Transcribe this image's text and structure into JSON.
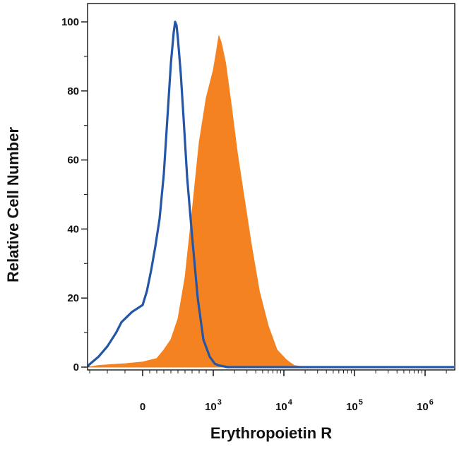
{
  "chart_data": {
    "type": "area",
    "title": "",
    "xlabel": "Erythropoietin R",
    "ylabel": "Relative Cell Number",
    "x_scale": "biexponential",
    "xlim": [
      -400,
      3000000
    ],
    "ylim": [
      0,
      105
    ],
    "y_ticks": [
      {
        "value": 0,
        "label": "0"
      },
      {
        "value": 20,
        "label": "20"
      },
      {
        "value": 40,
        "label": "40"
      },
      {
        "value": 60,
        "label": "60"
      },
      {
        "value": 80,
        "label": "80"
      },
      {
        "value": 100,
        "label": "100"
      }
    ],
    "x_ticks": [
      {
        "value": 0,
        "base": "0",
        "exp": ""
      },
      {
        "value": 1000,
        "base": "10",
        "exp": "3"
      },
      {
        "value": 10000,
        "base": "10",
        "exp": "4"
      },
      {
        "value": 100000,
        "base": "10",
        "exp": "5"
      },
      {
        "value": 1000000,
        "base": "10",
        "exp": "6"
      }
    ],
    "grid": false,
    "series": [
      {
        "style": "filled",
        "color": "#F58220",
        "points": [
          [
            -400,
            0
          ],
          [
            -250,
            0.5
          ],
          [
            -100,
            1
          ],
          [
            0,
            1.5
          ],
          [
            100,
            2
          ],
          [
            200,
            2.5
          ],
          [
            300,
            5
          ],
          [
            400,
            8
          ],
          [
            500,
            14
          ],
          [
            600,
            26
          ],
          [
            700,
            45
          ],
          [
            800,
            65
          ],
          [
            900,
            78
          ],
          [
            1000,
            86
          ],
          [
            1100,
            91
          ],
          [
            1200,
            96
          ],
          [
            1300,
            94
          ],
          [
            1500,
            88
          ],
          [
            1800,
            76
          ],
          [
            2200,
            62
          ],
          [
            2700,
            50
          ],
          [
            3500,
            35
          ],
          [
            4500,
            22
          ],
          [
            6000,
            12
          ],
          [
            8000,
            5
          ],
          [
            11000,
            2
          ],
          [
            14000,
            0.5
          ],
          [
            20000,
            0
          ],
          [
            3000000,
            0
          ]
        ]
      },
      {
        "style": "outline",
        "color": "#2456A6",
        "points": [
          [
            -400,
            0
          ],
          [
            -350,
            0.5
          ],
          [
            -250,
            3
          ],
          [
            -200,
            6
          ],
          [
            -150,
            10
          ],
          [
            -120,
            13
          ],
          [
            -60,
            16
          ],
          [
            0,
            18
          ],
          [
            60,
            22
          ],
          [
            120,
            28
          ],
          [
            180,
            35
          ],
          [
            240,
            43
          ],
          [
            300,
            56
          ],
          [
            350,
            72
          ],
          [
            400,
            88
          ],
          [
            440,
            97
          ],
          [
            460,
            100
          ],
          [
            480,
            99
          ],
          [
            500,
            95
          ],
          [
            540,
            85
          ],
          [
            580,
            72
          ],
          [
            630,
            55
          ],
          [
            700,
            38
          ],
          [
            780,
            20
          ],
          [
            860,
            8
          ],
          [
            950,
            3
          ],
          [
            1050,
            1
          ],
          [
            1200,
            0.5
          ],
          [
            1600,
            0
          ],
          [
            3000000,
            0
          ]
        ]
      }
    ]
  }
}
